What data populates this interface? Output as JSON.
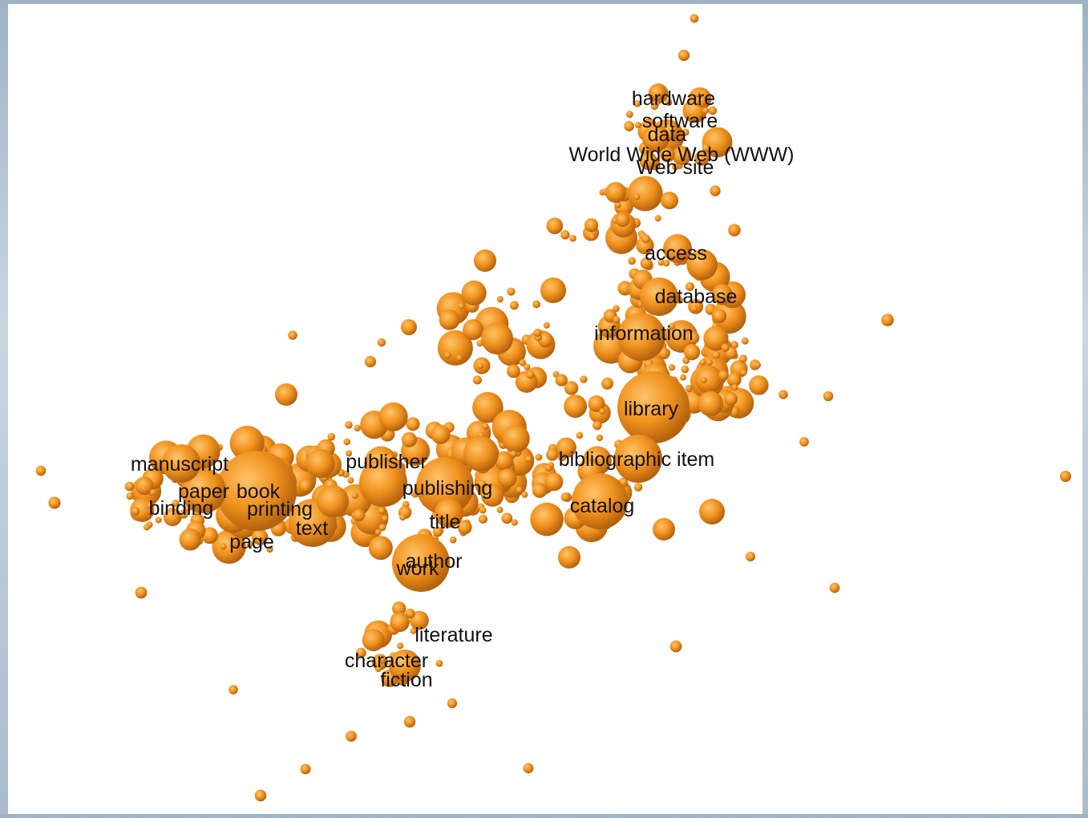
{
  "nodes": [
    {
      "label": "hardware"
    },
    {
      "label": "software"
    },
    {
      "label": "data"
    },
    {
      "label": "World Wide Web (WWW)"
    },
    {
      "label": "Web site"
    },
    {
      "label": "access"
    },
    {
      "label": "database"
    },
    {
      "label": "information"
    },
    {
      "label": "library"
    },
    {
      "label": "bibliographic item"
    },
    {
      "label": "catalog"
    },
    {
      "label": "publisher"
    },
    {
      "label": "publishing"
    },
    {
      "label": "title"
    },
    {
      "label": "author"
    },
    {
      "label": "work"
    },
    {
      "label": "manuscript"
    },
    {
      "label": "paper"
    },
    {
      "label": "book"
    },
    {
      "label": "binding"
    },
    {
      "label": "printing"
    },
    {
      "label": "text"
    },
    {
      "label": "page"
    },
    {
      "label": "literature"
    },
    {
      "label": "character"
    },
    {
      "label": "fiction"
    }
  ]
}
